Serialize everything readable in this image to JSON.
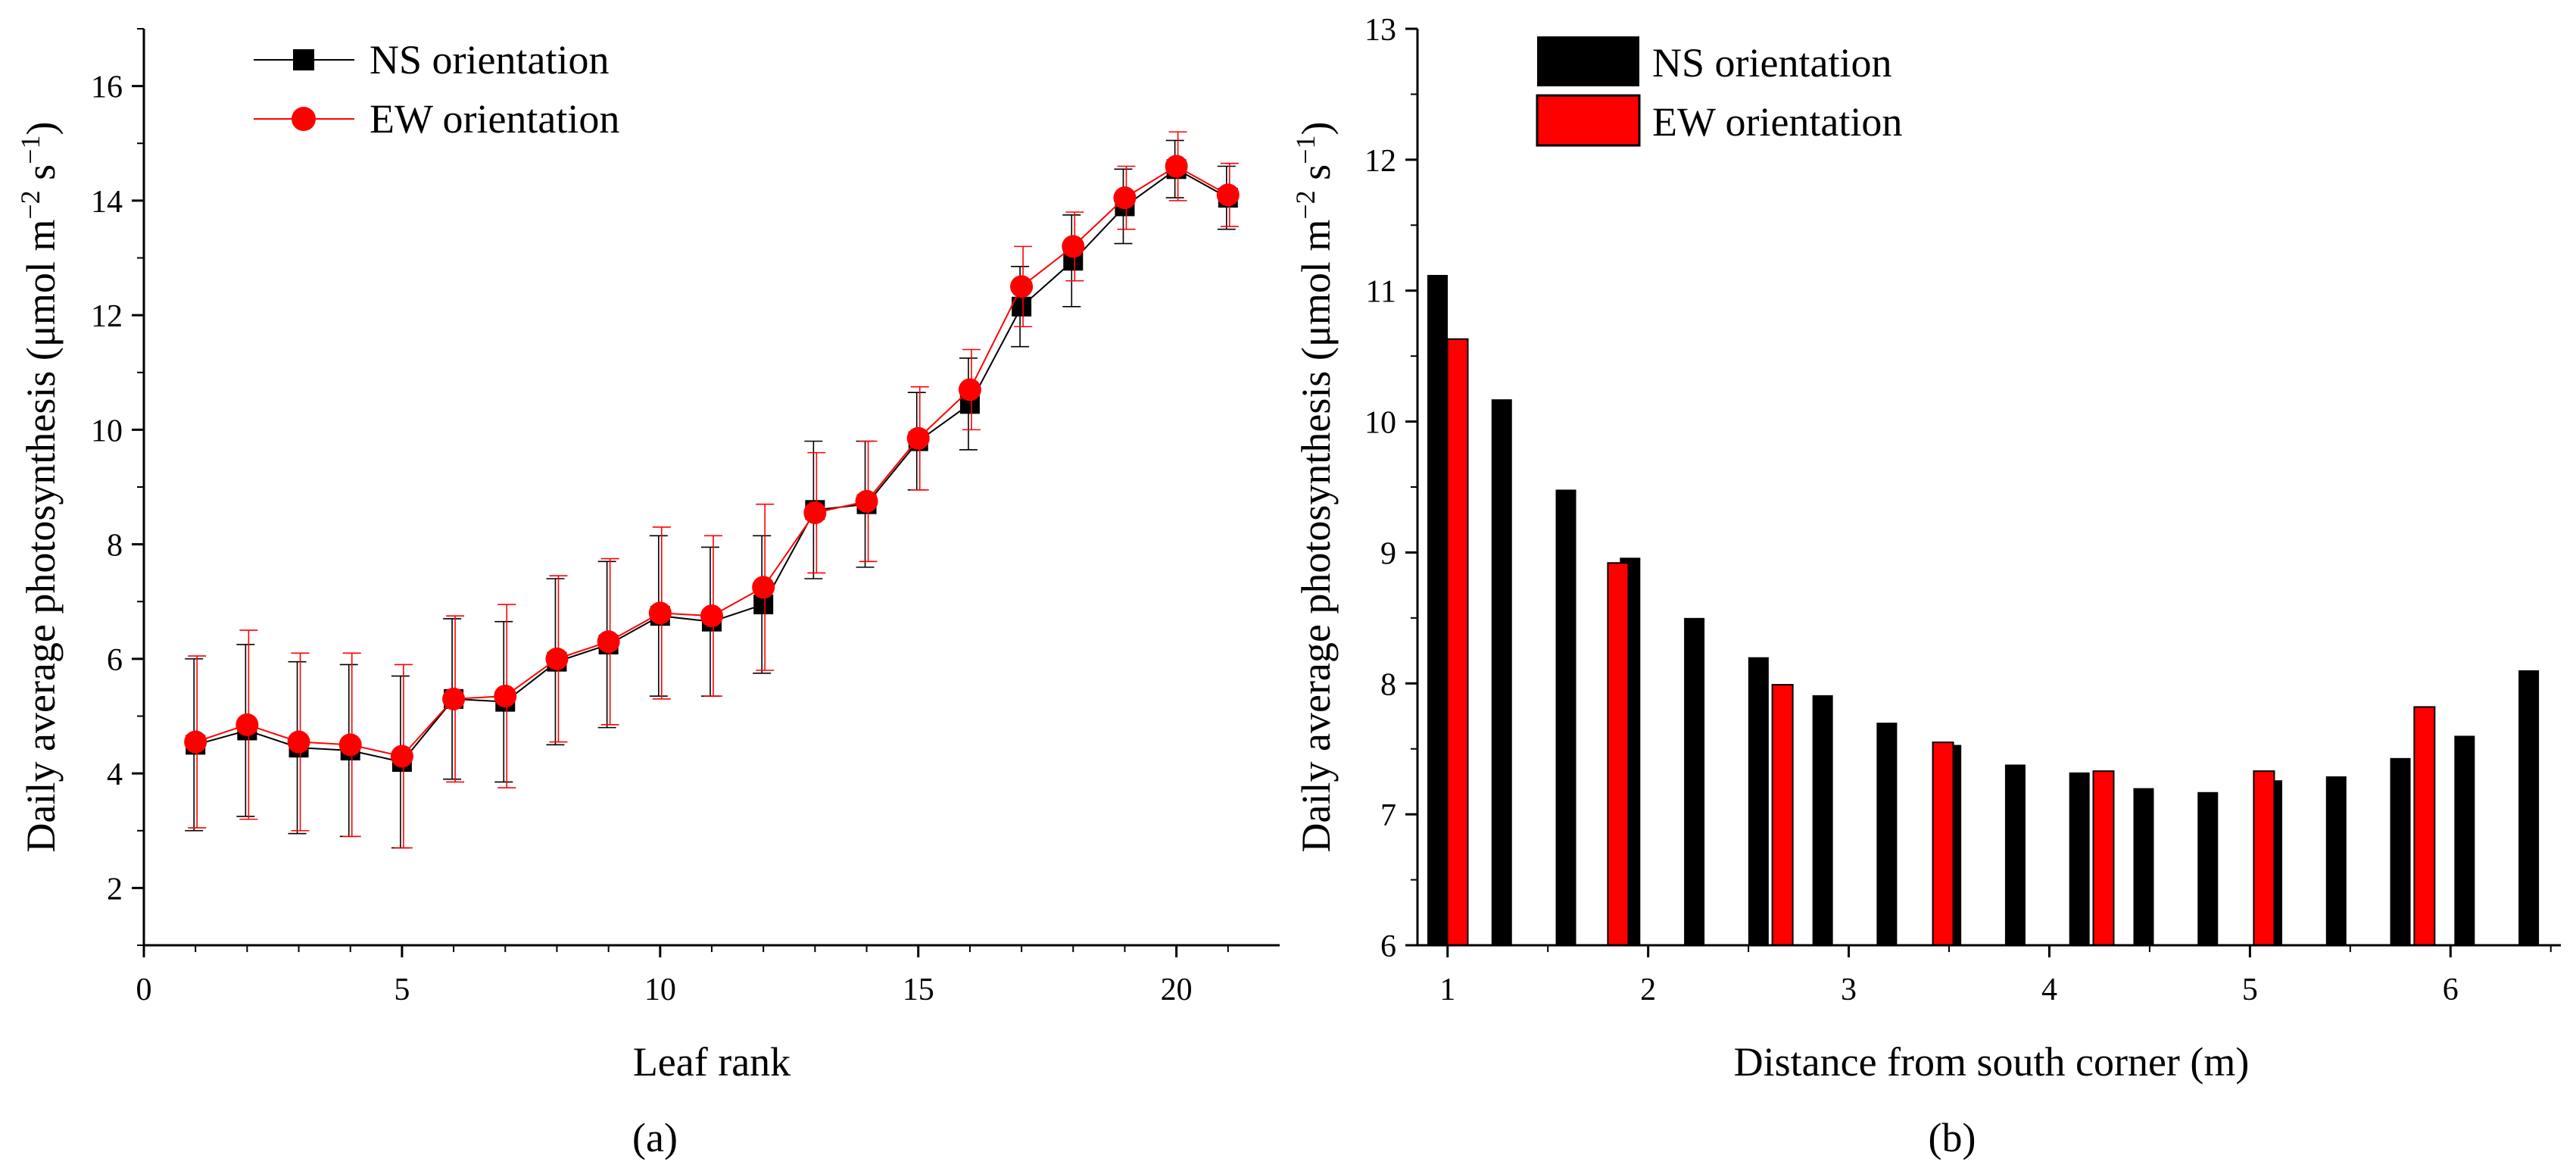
{
  "chart_data": [
    {
      "type": "line",
      "panel_label": "(a)",
      "title": "",
      "xlabel": "Leaf rank",
      "ylabel_main": "Daily average photosynthesis (μmol m",
      "ylabel_sup1": "−2",
      "ylabel_mid": " s",
      "ylabel_sup2": "−1",
      "ylabel_end": ")",
      "xlim": [
        0,
        22
      ],
      "ylim": [
        1,
        17
      ],
      "xticks": [
        0,
        5,
        10,
        15,
        20
      ],
      "yticks": [
        2,
        4,
        6,
        8,
        10,
        12,
        14,
        16
      ],
      "legend_position": "top-left",
      "x": [
        1,
        2,
        3,
        4,
        5,
        6,
        7,
        8,
        9,
        10,
        11,
        12,
        13,
        14,
        15,
        16,
        17,
        18,
        19,
        20,
        21
      ],
      "series": [
        {
          "name": "NS orientation",
          "color": "#000000",
          "marker": "square",
          "values": [
            4.5,
            4.75,
            4.45,
            4.4,
            4.2,
            5.3,
            5.25,
            5.95,
            6.25,
            6.75,
            6.65,
            6.95,
            8.6,
            8.7,
            9.8,
            10.45,
            12.15,
            12.95,
            13.9,
            14.55,
            14.05
          ],
          "errors": [
            1.5,
            1.5,
            1.5,
            1.5,
            1.5,
            1.4,
            1.4,
            1.45,
            1.45,
            1.4,
            1.3,
            1.2,
            1.2,
            1.1,
            0.85,
            0.8,
            0.7,
            0.8,
            0.65,
            0.5,
            0.55
          ]
        },
        {
          "name": "EW orientation",
          "color": "#ff0000",
          "marker": "circle",
          "values": [
            4.55,
            4.85,
            4.55,
            4.5,
            4.3,
            5.3,
            5.35,
            6.0,
            6.3,
            6.8,
            6.75,
            7.25,
            8.55,
            8.75,
            9.85,
            10.7,
            12.5,
            13.2,
            14.05,
            14.6,
            14.1
          ],
          "errors": [
            1.5,
            1.65,
            1.55,
            1.6,
            1.6,
            1.45,
            1.6,
            1.45,
            1.45,
            1.5,
            1.4,
            1.45,
            1.05,
            1.05,
            0.9,
            0.7,
            0.7,
            0.6,
            0.55,
            0.6,
            0.55
          ]
        }
      ]
    },
    {
      "type": "bar",
      "panel_label": "(b)",
      "title": "",
      "xlabel": "Distance from south corner (m)",
      "ylabel_main": "Daily average photosynthesis (μmol m",
      "ylabel_sup1": "−2",
      "ylabel_mid": " s",
      "ylabel_sup2": "−1",
      "ylabel_end": ")",
      "xlim": [
        0.85,
        6.55
      ],
      "ylim": [
        6,
        13
      ],
      "xticks": [
        1,
        2,
        3,
        4,
        5,
        6
      ],
      "yticks": [
        6,
        7,
        8,
        9,
        10,
        11,
        12,
        13
      ],
      "legend_position": "top-left",
      "series": [
        {
          "name": "NS orientation",
          "color": "#000000",
          "x": [
            0.95,
            1.27,
            1.59,
            1.91,
            2.23,
            2.55,
            2.87,
            3.19,
            3.51,
            3.83,
            4.15,
            4.47,
            4.79,
            5.11,
            5.43,
            5.75,
            6.07,
            6.39
          ],
          "values": [
            11.12,
            10.17,
            9.48,
            8.96,
            8.5,
            8.2,
            7.91,
            7.7,
            7.53,
            7.38,
            7.32,
            7.2,
            7.17,
            7.26,
            7.29,
            7.43,
            7.6,
            8.1
          ]
        },
        {
          "name": "EW orientation",
          "color": "#ff0000",
          "x": [
            1.05,
            1.85,
            2.67,
            3.47,
            4.27,
            5.07,
            5.87
          ],
          "values": [
            10.63,
            8.92,
            7.99,
            7.55,
            7.33,
            7.33,
            7.82
          ]
        }
      ]
    }
  ]
}
